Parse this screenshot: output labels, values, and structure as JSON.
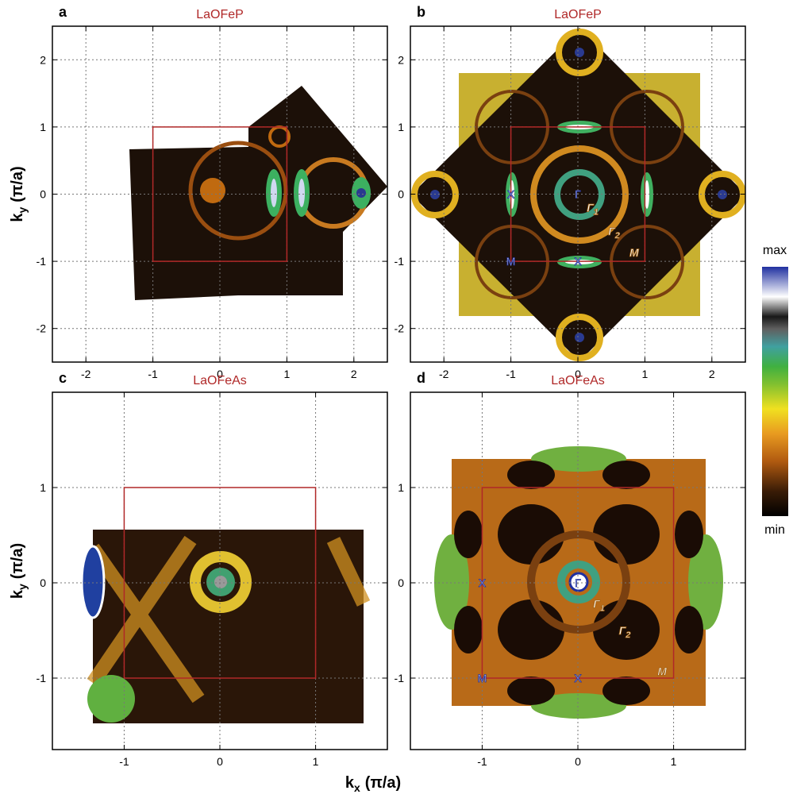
{
  "chart_data": [
    {
      "type": "heatmap",
      "label": "a",
      "title": "LaOFeP",
      "xlim": [
        -2.5,
        2.5
      ],
      "ylim": [
        -2.5,
        2.5
      ],
      "xticks": [
        -2,
        -1,
        0,
        1,
        2
      ],
      "yticks": [
        -2,
        -1,
        0,
        1,
        2
      ],
      "grid": true,
      "zone": [
        -1,
        1
      ],
      "zone_color": "#b02828",
      "y_label": {
        "text": "k",
        "sub": "y",
        "unit": "(π/a)"
      },
      "annotations": []
    },
    {
      "type": "heatmap",
      "label": "b",
      "title": "LaOFeP",
      "xlim": [
        -2.5,
        2.5
      ],
      "ylim": [
        -2.5,
        2.5
      ],
      "xticks": [
        -2,
        -1,
        0,
        1,
        2
      ],
      "yticks": [
        -2,
        -1,
        0,
        1,
        2
      ],
      "grid": true,
      "zone": [
        -1,
        1
      ],
      "zone_color": "#b02828",
      "annotations": [
        {
          "label": "X",
          "x": -1,
          "y": 0
        },
        {
          "label": "Γ",
          "x": 0,
          "y": 0
        },
        {
          "label": "Γ",
          "sub": "1",
          "x": 0.22,
          "y": -0.2,
          "italic": true
        },
        {
          "label": "Γ",
          "sub": "2",
          "x": 0.54,
          "y": -0.55,
          "italic": true
        },
        {
          "label": "M",
          "x": -1,
          "y": -1
        },
        {
          "label": "X",
          "x": 0,
          "y": -1
        },
        {
          "label": "M",
          "x": 0.84,
          "y": -0.87,
          "italic": true
        }
      ]
    },
    {
      "type": "heatmap",
      "label": "c",
      "title": "LaOFeAs",
      "xlim": [
        -1.75,
        1.75
      ],
      "ylim": [
        -1.75,
        2
      ],
      "xticks": [
        -1,
        0,
        1
      ],
      "yticks": [
        -1,
        0,
        1
      ],
      "grid": true,
      "zone": [
        -1,
        1
      ],
      "zone_color": "#b02828",
      "y_label": {
        "text": "k",
        "sub": "y",
        "unit": "(π/a)"
      },
      "annotations": []
    },
    {
      "type": "heatmap",
      "label": "d",
      "title": "LaOFeAs",
      "xlim": [
        -1.75,
        1.75
      ],
      "ylim": [
        -1.75,
        2
      ],
      "xticks": [
        -1,
        0,
        1
      ],
      "yticks": [
        -1,
        0,
        1
      ],
      "grid": true,
      "zone": [
        -1,
        1
      ],
      "zone_color": "#b02828",
      "annotations": [
        {
          "label": "X",
          "x": -1,
          "y": 0
        },
        {
          "label": "Γ",
          "x": 0,
          "y": 0
        },
        {
          "label": "Γ",
          "sub": "1",
          "x": 0.22,
          "y": -0.22,
          "italic": true
        },
        {
          "label": "Γ",
          "sub": "2",
          "x": 0.49,
          "y": -0.5,
          "italic": true
        },
        {
          "label": "M",
          "x": -1,
          "y": -1
        },
        {
          "label": "X",
          "x": 0,
          "y": -1
        },
        {
          "label": "M",
          "x": 0.88,
          "y": -0.93,
          "italic": true
        }
      ]
    }
  ],
  "x_label": {
    "text": "k",
    "sub": "x",
    "unit": "(π/a)"
  },
  "colorbar": {
    "max_label": "max",
    "min_label": "min"
  }
}
